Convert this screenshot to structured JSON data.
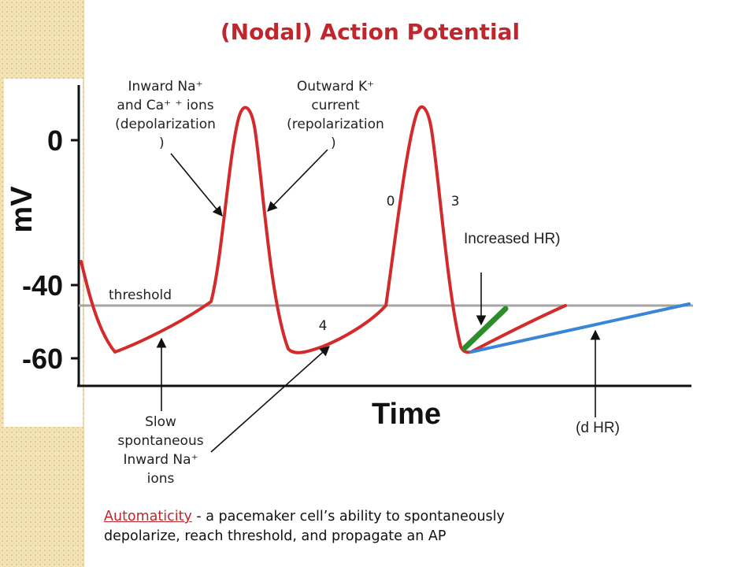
{
  "title": "(Nodal) Action Potential",
  "axes": {
    "y_label": "mV",
    "x_label": "Time",
    "y_ticks": [
      "0",
      "-40",
      "-60"
    ]
  },
  "labels": {
    "inward_na_ca": [
      "Inward Na⁺",
      "and Ca⁺ ⁺ ions",
      "(depolarization",
      ")"
    ],
    "outward_k": [
      "Outward K⁺",
      "current",
      "(repolarization",
      ")"
    ],
    "phase_0": "0",
    "phase_3": "3",
    "phase_4": "4",
    "threshold": "threshold",
    "increased_hr": "Increased HR)",
    "decreased_hr": "(d HR)",
    "slow_inward": [
      "Slow",
      "spontaneous",
      "Inward Na⁺",
      "ions"
    ]
  },
  "caption": {
    "term": "Automaticity",
    "rest_line1": " - a pacemaker cell’s ability to spontaneously",
    "line2": "depolarize, reach threshold, and propagate an AP"
  },
  "colors": {
    "title": "#c0262c",
    "trace_red": "#d32b2b",
    "trace_green": "#2a8f2a",
    "trace_blue": "#3a86d6",
    "threshold_line": "#9a9a9a",
    "arrows": "#111111"
  }
}
